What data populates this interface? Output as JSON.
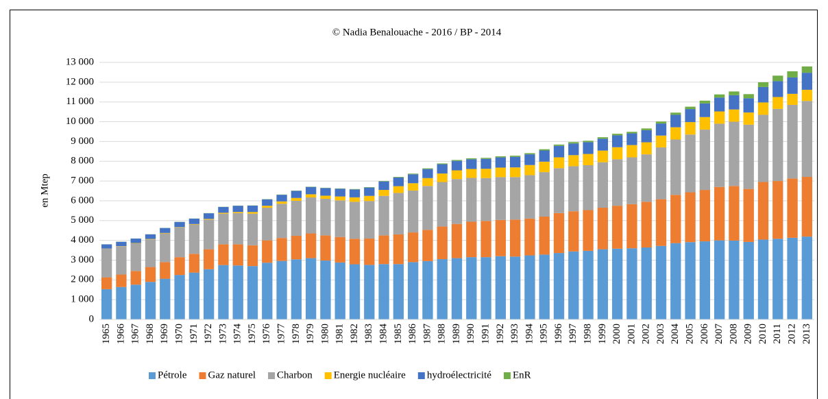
{
  "chart_data": {
    "type": "stacked-bar",
    "title": "© Nadia Benalouache - 2016 / BP - 2014",
    "y_label": "en Mtep",
    "categories": [
      "1965",
      "1966",
      "1967",
      "1968",
      "1969",
      "1970",
      "1971",
      "1972",
      "1973",
      "1974",
      "1975",
      "1976",
      "1977",
      "1978",
      "1979",
      "1980",
      "1981",
      "1982",
      "1983",
      "1984",
      "1985",
      "1986",
      "1987",
      "1988",
      "1989",
      "1990",
      "1991",
      "1992",
      "1993",
      "1994",
      "1995",
      "1996",
      "1997",
      "1998",
      "1999",
      "2000",
      "2001",
      "2002",
      "2003",
      "2004",
      "2005",
      "2006",
      "2007",
      "2008",
      "2009",
      "2010",
      "2011",
      "2012",
      "2013"
    ],
    "series": [
      {
        "name": "Pétrole",
        "color": "#5b9bd5",
        "values": [
          1530,
          1640,
          1760,
          1900,
          2060,
          2250,
          2370,
          2540,
          2750,
          2730,
          2700,
          2870,
          2960,
          3040,
          3100,
          2980,
          2880,
          2790,
          2760,
          2800,
          2800,
          2900,
          2950,
          3050,
          3100,
          3150,
          3150,
          3200,
          3180,
          3240,
          3280,
          3360,
          3440,
          3470,
          3550,
          3580,
          3600,
          3640,
          3720,
          3860,
          3910,
          3950,
          4000,
          3990,
          3920,
          4040,
          4080,
          4130,
          4190
        ]
      },
      {
        "name": "Gaz naturel",
        "color": "#ed7d31",
        "values": [
          600,
          630,
          690,
          750,
          840,
          900,
          950,
          1010,
          1050,
          1070,
          1050,
          1130,
          1160,
          1190,
          1250,
          1270,
          1290,
          1290,
          1330,
          1450,
          1500,
          1500,
          1580,
          1650,
          1730,
          1790,
          1830,
          1830,
          1870,
          1860,
          1920,
          2020,
          2030,
          2060,
          2100,
          2170,
          2230,
          2310,
          2360,
          2440,
          2520,
          2600,
          2700,
          2760,
          2680,
          2910,
          2920,
          3000,
          3020
        ]
      },
      {
        "name": "Charbon",
        "color": "#a5a5a5",
        "values": [
          1450,
          1430,
          1400,
          1400,
          1450,
          1500,
          1480,
          1500,
          1550,
          1580,
          1600,
          1650,
          1730,
          1770,
          1820,
          1850,
          1850,
          1870,
          1900,
          2000,
          2100,
          2120,
          2220,
          2250,
          2270,
          2220,
          2170,
          2170,
          2150,
          2200,
          2250,
          2270,
          2280,
          2270,
          2300,
          2350,
          2370,
          2400,
          2620,
          2800,
          2920,
          3050,
          3200,
          3250,
          3250,
          3400,
          3650,
          3720,
          3840
        ]
      },
      {
        "name": "Energie nucléaire",
        "color": "#ffc000",
        "values": [
          6,
          10,
          15,
          20,
          25,
          18,
          25,
          35,
          45,
          55,
          85,
          100,
          120,
          145,
          160,
          160,
          200,
          225,
          260,
          300,
          340,
          370,
          400,
          430,
          440,
          450,
          470,
          480,
          490,
          510,
          530,
          550,
          560,
          570,
          590,
          610,
          620,
          610,
          600,
          620,
          630,
          635,
          620,
          620,
          615,
          625,
          600,
          560,
          565
        ]
      },
      {
        "name": "hydroélectricité",
        "color": "#4472c4",
        "values": [
          210,
          220,
          225,
          235,
          250,
          265,
          275,
          285,
          295,
          315,
          320,
          325,
          335,
          355,
          370,
          385,
          390,
          400,
          420,
          430,
          440,
          450,
          455,
          470,
          480,
          490,
          500,
          515,
          535,
          540,
          565,
          580,
          590,
          595,
          600,
          600,
          590,
          610,
          610,
          630,
          660,
          690,
          700,
          720,
          720,
          780,
          800,
          830,
          860
        ]
      },
      {
        "name": "EnR",
        "color": "#70ad47",
        "values": [
          5,
          5,
          5,
          6,
          6,
          7,
          7,
          8,
          8,
          9,
          10,
          11,
          12,
          13,
          14,
          15,
          17,
          19,
          21,
          25,
          30,
          35,
          37,
          40,
          45,
          50,
          52,
          55,
          57,
          60,
          63,
          65,
          70,
          72,
          75,
          80,
          80,
          90,
          100,
          110,
          120,
          140,
          160,
          190,
          210,
          240,
          280,
          310,
          320
        ]
      }
    ],
    "ylim": [
      0,
      13000
    ],
    "yticks": [
      0,
      {
        "value": 1000,
        "label": "1 000"
      },
      {
        "value": 2000,
        "label": "2 000"
      },
      {
        "value": 3000,
        "label": "3 000"
      },
      {
        "value": 4000,
        "label": "4 000"
      },
      {
        "value": 5000,
        "label": "5 000"
      },
      {
        "value": 6000,
        "label": "6 000"
      },
      {
        "value": 7000,
        "label": "7 000"
      },
      {
        "value": 8000,
        "label": "8 000"
      },
      {
        "value": 9000,
        "label": "9 000"
      },
      {
        "value": 10000,
        "label": "10 000"
      },
      {
        "value": 11000,
        "label": "11 000"
      },
      {
        "value": 12000,
        "label": "12 000"
      },
      {
        "value": 13000,
        "label": "13 000"
      }
    ],
    "grid": true,
    "legend": "bottom"
  }
}
